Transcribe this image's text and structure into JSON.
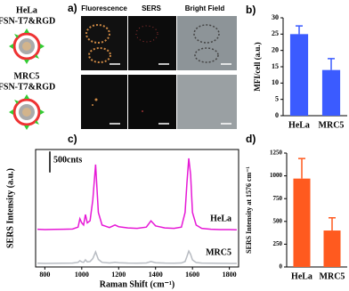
{
  "panel_a": {
    "label": "a)",
    "columns": [
      "Fluorescence",
      "SERS",
      "Bright Field"
    ],
    "rows": [
      {
        "cell": "HeLa",
        "probe": "FSN-T7&RGD"
      },
      {
        "cell": "MRC5",
        "probe": "FSN-T7&RGD"
      }
    ]
  },
  "chart_data": [
    {
      "panel": "b)",
      "type": "bar",
      "ylabel": "MFI/cell (a.u.)",
      "categories": [
        "HeLa",
        "MRC5"
      ],
      "values": [
        25,
        14
      ],
      "errors": [
        2.5,
        3.5
      ],
      "color": "#3b5bff",
      "ylim": [
        0,
        30
      ],
      "yticks": [
        0,
        5,
        10,
        15,
        20,
        25,
        30
      ]
    },
    {
      "panel": "c)",
      "type": "line",
      "xlabel": "Raman Shift (cm⁻¹)",
      "ylabel": "SERS Intensity (a.u.)",
      "scale_bar": {
        "value": 500,
        "label": "500cnts"
      },
      "x": [
        760,
        800,
        850,
        900,
        950,
        980,
        990,
        1000,
        1010,
        1020,
        1030,
        1045,
        1060,
        1075,
        1090,
        1110,
        1150,
        1180,
        1200,
        1250,
        1300,
        1350,
        1375,
        1400,
        1450,
        1500,
        1540,
        1560,
        1570,
        1580,
        1590,
        1600,
        1620,
        1650,
        1700,
        1750,
        1800,
        1840
      ],
      "series": [
        {
          "name": "HeLa",
          "color": "#e619d6",
          "values": [
            900,
            890,
            895,
            900,
            905,
            950,
            1150,
            1050,
            1000,
            1250,
            1050,
            1100,
            1600,
            2440,
            1300,
            1000,
            940,
            1000,
            960,
            930,
            920,
            950,
            1100,
            980,
            930,
            920,
            950,
            1300,
            2000,
            2590,
            2200,
            1300,
            1000,
            920,
            900,
            890,
            890,
            885
          ]
        },
        {
          "name": "MRC5",
          "color": "#b8bcc2",
          "values": [
            90,
            85,
            88,
            90,
            92,
            110,
            150,
            120,
            110,
            170,
            120,
            130,
            200,
            360,
            180,
            110,
            95,
            110,
            100,
            92,
            90,
            95,
            130,
            100,
            92,
            90,
            95,
            130,
            250,
            380,
            300,
            170,
            105,
            92,
            90,
            88,
            86,
            85
          ]
        }
      ],
      "xlim": [
        750,
        1850
      ],
      "xticks": [
        800,
        1000,
        1200,
        1400,
        1600,
        1800
      ],
      "ylim": [
        0,
        2800
      ]
    },
    {
      "panel": "d)",
      "type": "bar",
      "ylabel": "SERS Intensity at 1576 cm⁻¹",
      "categories": [
        "HeLa",
        "MRC5"
      ],
      "values": [
        970,
        400
      ],
      "errors": [
        220,
        140
      ],
      "color": "#ff5a1f",
      "ylim": [
        0,
        1250
      ],
      "yticks": [
        0,
        250,
        500,
        750,
        1000,
        1250
      ]
    }
  ]
}
